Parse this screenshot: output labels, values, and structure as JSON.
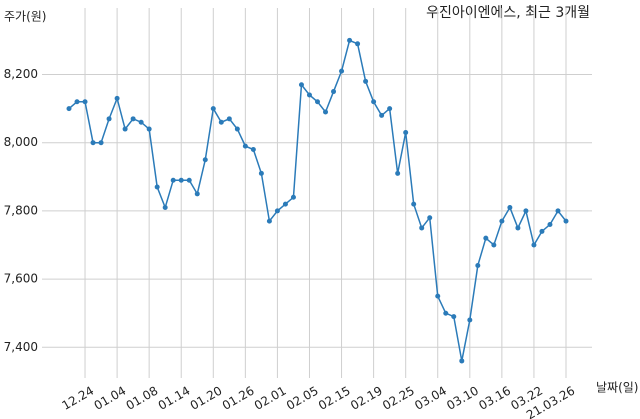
{
  "chart_data": {
    "type": "line",
    "title": "우진아이엔에스, 최근 3개월",
    "y_label": "주가(원)",
    "x_label": "날짜(일)",
    "categories": [
      null,
      null,
      "12.24",
      null,
      null,
      null,
      "01.04",
      null,
      null,
      null,
      "01.08",
      null,
      null,
      null,
      "01.14",
      null,
      null,
      null,
      "01.20",
      null,
      null,
      null,
      "01.26",
      null,
      null,
      null,
      "02.01",
      null,
      null,
      null,
      "02.05",
      null,
      null,
      null,
      "02.15",
      null,
      null,
      null,
      "02.19",
      null,
      null,
      null,
      "02.25",
      null,
      null,
      null,
      "03.04",
      null,
      null,
      null,
      "03.10",
      null,
      null,
      null,
      "03.16",
      null,
      null,
      null,
      "03.22",
      null,
      null,
      null,
      "21.03.26"
    ],
    "series": [
      {
        "name": "우진아이엔에스",
        "color": "#2b7bb9",
        "values": [
          8100,
          8120,
          8120,
          8000,
          8000,
          8070,
          8130,
          8040,
          8070,
          8060,
          8040,
          7870,
          7810,
          7890,
          7890,
          7890,
          7850,
          7950,
          8100,
          8060,
          8070,
          8040,
          7990,
          7980,
          7910,
          7770,
          7800,
          7820,
          7840,
          8170,
          8140,
          8120,
          8090,
          8150,
          8210,
          8300,
          8290,
          8180,
          8120,
          8080,
          8100,
          7910,
          8030,
          7820,
          7750,
          7780,
          7550,
          7500,
          7490,
          7360,
          7480,
          7640,
          7720,
          7700,
          7770,
          7810,
          7750,
          7800,
          7700,
          7740,
          7760,
          7800,
          7770
        ]
      }
    ],
    "ylim": [
      7310,
      8395
    ],
    "yticks": [
      {
        "value": 7400,
        "label": "7,400"
      },
      {
        "value": 7600,
        "label": "7,600"
      },
      {
        "value": 7800,
        "label": "7,800"
      },
      {
        "value": 8000,
        "label": "8,000"
      },
      {
        "value": 8200,
        "label": "8,200"
      }
    ],
    "grid": true
  }
}
